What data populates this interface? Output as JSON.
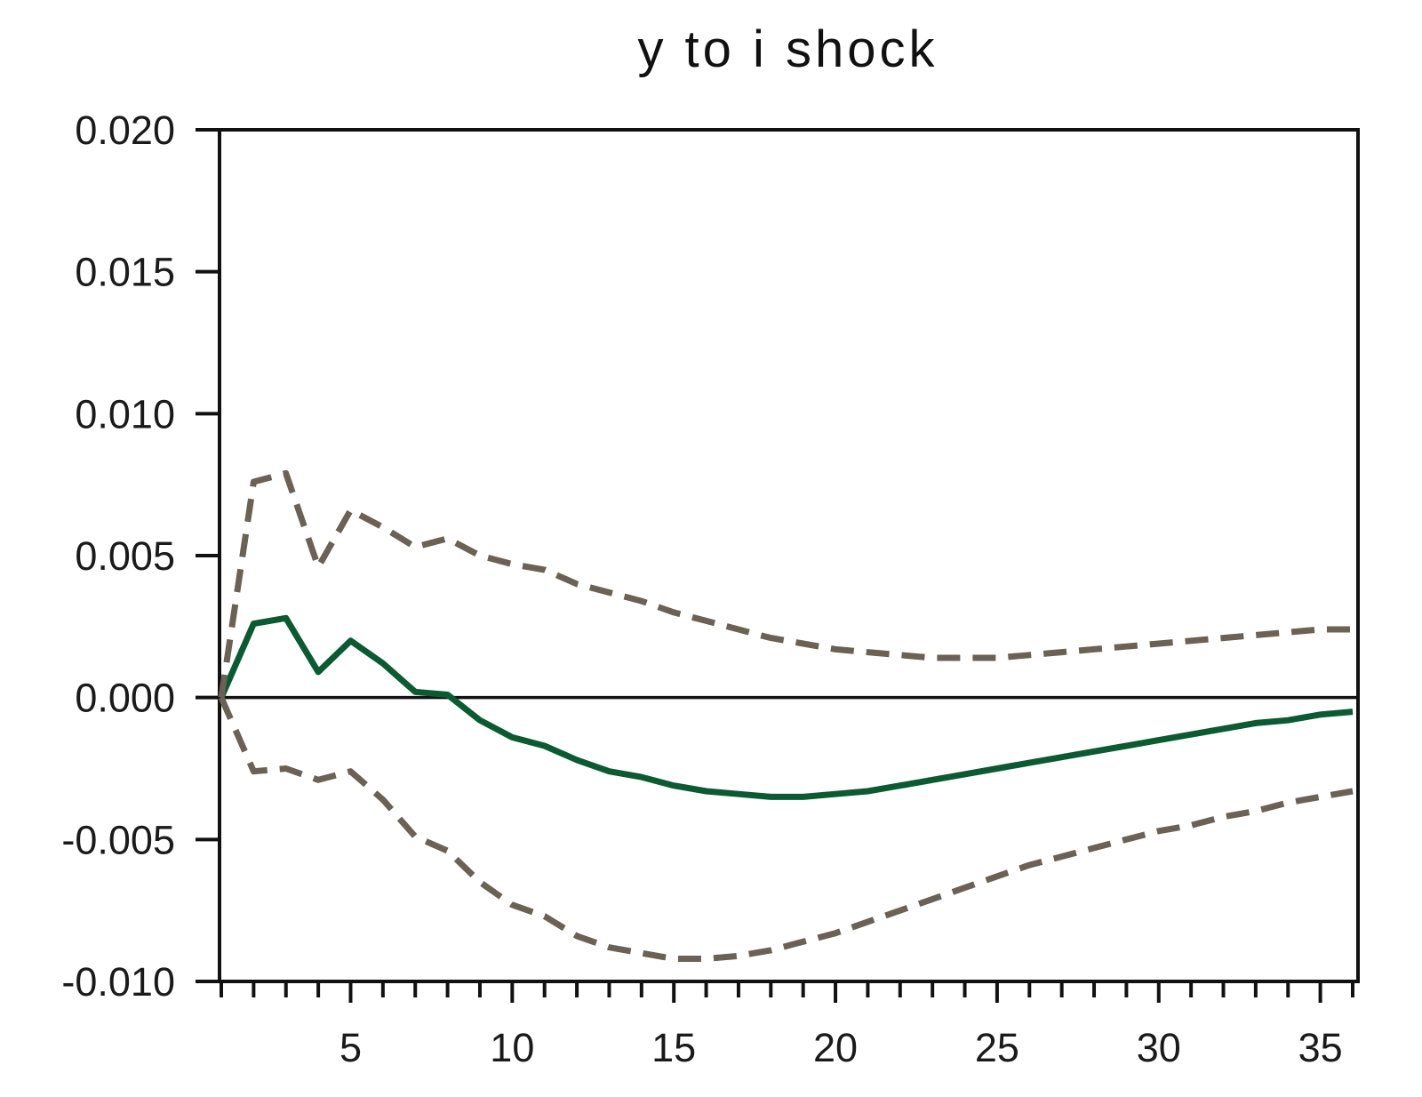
{
  "chart_data": {
    "type": "line",
    "title": "y to i shock",
    "xlabel": "",
    "ylabel": "",
    "xlim": [
      1,
      36
    ],
    "ylim": [
      -0.01,
      0.02
    ],
    "x_ticks": [
      5,
      10,
      15,
      20,
      25,
      30,
      35
    ],
    "x_minor_ticks": [
      1,
      2,
      3,
      4,
      5,
      6,
      7,
      8,
      9,
      10,
      11,
      12,
      13,
      14,
      15,
      16,
      17,
      18,
      19,
      20,
      21,
      22,
      23,
      24,
      25,
      26,
      27,
      28,
      29,
      30,
      31,
      32,
      33,
      34,
      35,
      36
    ],
    "y_ticks": [
      -0.01,
      -0.005,
      0.0,
      0.005,
      0.01,
      0.015,
      0.02
    ],
    "y_tick_labels": [
      "-0.010",
      "-0.005",
      "0.000",
      "0.005",
      "0.010",
      "0.015",
      "0.020"
    ],
    "zero_line": true,
    "grid": false,
    "colors": {
      "response": "#0b5a32",
      "bands": "#6b6155",
      "axis": "#111111"
    },
    "x": [
      1,
      2,
      3,
      4,
      5,
      6,
      7,
      8,
      9,
      10,
      11,
      12,
      13,
      14,
      15,
      16,
      17,
      18,
      19,
      20,
      21,
      22,
      23,
      24,
      25,
      26,
      27,
      28,
      29,
      30,
      31,
      32,
      33,
      34,
      35,
      36
    ],
    "series": [
      {
        "style": "solid",
        "values": [
          0.0,
          0.0026,
          0.0028,
          0.0009,
          0.002,
          0.0012,
          0.0002,
          0.0001,
          -0.0008,
          -0.0014,
          -0.0017,
          -0.0022,
          -0.0026,
          -0.0028,
          -0.0031,
          -0.0033,
          -0.0034,
          -0.0035,
          -0.0035,
          -0.0034,
          -0.0033,
          -0.0031,
          -0.0029,
          -0.0027,
          -0.0025,
          -0.0023,
          -0.0021,
          -0.0019,
          -0.0017,
          -0.0015,
          -0.0013,
          -0.0011,
          -0.0009,
          -0.0008,
          -0.0006,
          -0.0005
        ]
      },
      {
        "style": "dashed",
        "values": [
          0.0,
          0.0076,
          0.0079,
          0.0046,
          0.0066,
          0.006,
          0.0053,
          0.0056,
          0.005,
          0.0047,
          0.0045,
          0.004,
          0.0037,
          0.0034,
          0.003,
          0.0027,
          0.0024,
          0.0021,
          0.0019,
          0.0017,
          0.0016,
          0.0015,
          0.0014,
          0.0014,
          0.0014,
          0.0015,
          0.0016,
          0.0017,
          0.0018,
          0.0019,
          0.002,
          0.0021,
          0.0022,
          0.0023,
          0.0024,
          0.0024
        ]
      },
      {
        "style": "dashed",
        "values": [
          0.0,
          -0.0026,
          -0.0025,
          -0.0029,
          -0.0026,
          -0.0036,
          -0.0049,
          -0.0054,
          -0.0065,
          -0.0073,
          -0.0077,
          -0.0084,
          -0.0088,
          -0.009,
          -0.0092,
          -0.0092,
          -0.0091,
          -0.0089,
          -0.0086,
          -0.0083,
          -0.0079,
          -0.0075,
          -0.0071,
          -0.0067,
          -0.0063,
          -0.0059,
          -0.0056,
          -0.0053,
          -0.005,
          -0.0047,
          -0.0045,
          -0.0042,
          -0.004,
          -0.0037,
          -0.0035,
          -0.0033
        ]
      }
    ]
  }
}
